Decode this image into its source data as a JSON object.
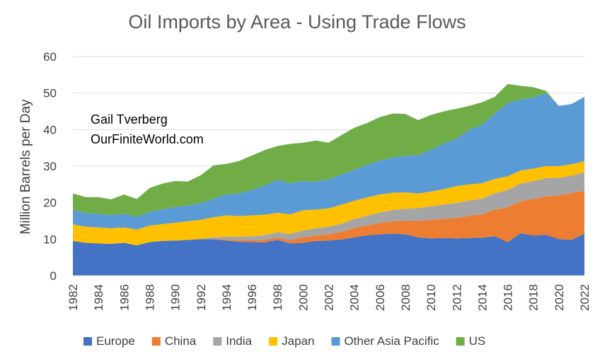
{
  "chart_data": {
    "type": "area",
    "stacked": true,
    "title": "Oil Imports by Area - Using Trade Flows",
    "ylabel": "Million Barrels per Day",
    "xlabel": "",
    "ylim": [
      0,
      60
    ],
    "yticks": [
      0,
      10,
      20,
      30,
      40,
      50,
      60
    ],
    "xlim": [
      1982,
      2022
    ],
    "xticks": [
      1982,
      1984,
      1986,
      1988,
      1990,
      1992,
      1994,
      1996,
      1998,
      2000,
      2002,
      2004,
      2006,
      2008,
      2010,
      2012,
      2014,
      2016,
      2018,
      2020,
      2022
    ],
    "grid": "horizontal",
    "legend": "bottom",
    "annotations": [
      "Gail Tverberg",
      "OurFiniteWorld.com"
    ],
    "x": [
      1982,
      1983,
      1984,
      1985,
      1986,
      1987,
      1988,
      1989,
      1990,
      1991,
      1992,
      1993,
      1994,
      1995,
      1996,
      1997,
      1998,
      1999,
      2000,
      2001,
      2002,
      2003,
      2004,
      2005,
      2006,
      2007,
      2008,
      2009,
      2010,
      2011,
      2012,
      2013,
      2014,
      2015,
      2016,
      2017,
      2018,
      2019,
      2020,
      2021,
      2022
    ],
    "series": [
      {
        "name": "Europe",
        "color": "#4472C4",
        "values": [
          9.5,
          9.0,
          8.8,
          8.7,
          9.0,
          8.3,
          9.2,
          9.5,
          9.6,
          9.8,
          10.0,
          10.0,
          9.6,
          9.3,
          9.2,
          9.1,
          9.8,
          8.8,
          9.0,
          9.5,
          9.6,
          9.9,
          10.5,
          11.0,
          11.3,
          11.5,
          11.3,
          10.5,
          10.2,
          10.3,
          10.2,
          10.3,
          10.4,
          10.8,
          9.2,
          11.6,
          11.0,
          11.2,
          10.0,
          9.8,
          11.5
        ]
      },
      {
        "name": "China",
        "color": "#ED7D31",
        "values": [
          0,
          0,
          0,
          0,
          0,
          0,
          0,
          0,
          0,
          0,
          0,
          0,
          0.3,
          0.4,
          0.5,
          0.7,
          0.6,
          0.9,
          1.5,
          1.5,
          1.7,
          2.1,
          2.6,
          2.8,
          3.1,
          3.4,
          3.7,
          4.5,
          5.1,
          5.3,
          5.6,
          6.1,
          6.4,
          7.3,
          9.5,
          8.8,
          10.0,
          10.5,
          12.0,
          12.8,
          11.8
        ]
      },
      {
        "name": "India",
        "color": "#A5A5A5",
        "values": [
          0,
          0,
          0,
          0,
          0,
          0,
          0,
          0,
          0,
          0,
          0,
          0.5,
          0.8,
          0.9,
          1.1,
          1.3,
          1.5,
          1.7,
          1.9,
          2.0,
          2.1,
          2.2,
          2.4,
          2.6,
          2.9,
          3.1,
          3.3,
          3.5,
          3.7,
          3.9,
          4.1,
          4.2,
          4.3,
          4.5,
          4.8,
          4.8,
          4.9,
          5.0,
          4.8,
          4.8,
          5.0
        ]
      },
      {
        "name": "Japan",
        "color": "#FFC000",
        "values": [
          4.5,
          4.4,
          4.4,
          4.3,
          4.2,
          4.3,
          4.5,
          4.6,
          4.9,
          5.1,
          5.3,
          5.5,
          5.8,
          5.7,
          5.7,
          5.6,
          5.3,
          5.4,
          5.5,
          5.1,
          5.0,
          5.2,
          5.0,
          5.0,
          4.9,
          4.7,
          4.5,
          4.0,
          4.0,
          4.2,
          4.6,
          4.4,
          4.2,
          3.9,
          3.7,
          3.6,
          3.4,
          3.3,
          3.2,
          3.1,
          3.0
        ]
      },
      {
        "name": "Other Asia Pacific",
        "color": "#5B9BD5",
        "values": [
          4.0,
          3.8,
          3.7,
          3.6,
          3.8,
          3.5,
          3.8,
          4.1,
          4.3,
          4.3,
          4.6,
          5.0,
          5.8,
          6.2,
          7.0,
          8.0,
          9.0,
          8.5,
          8.0,
          7.6,
          8.0,
          8.3,
          8.5,
          8.9,
          9.3,
          9.7,
          10.0,
          10.5,
          11.5,
          12.5,
          13.0,
          15.0,
          16.0,
          18.0,
          20.0,
          19.5,
          19.5,
          20.0,
          16.5,
          16.5,
          17.7
        ]
      },
      {
        "name": "US",
        "color": "#70AD47",
        "values": [
          4.5,
          4.3,
          4.6,
          4.3,
          5.2,
          4.9,
          6.5,
          7.0,
          7.1,
          6.6,
          7.6,
          9.2,
          8.3,
          8.9,
          9.4,
          9.7,
          9.3,
          10.8,
          10.5,
          11.3,
          10.0,
          10.8,
          11.5,
          11.5,
          11.9,
          12.0,
          11.5,
          9.6,
          9.5,
          8.8,
          8.2,
          6.5,
          6.2,
          4.5,
          5.3,
          3.7,
          2.8,
          0.6,
          0,
          0,
          0
        ]
      }
    ]
  }
}
